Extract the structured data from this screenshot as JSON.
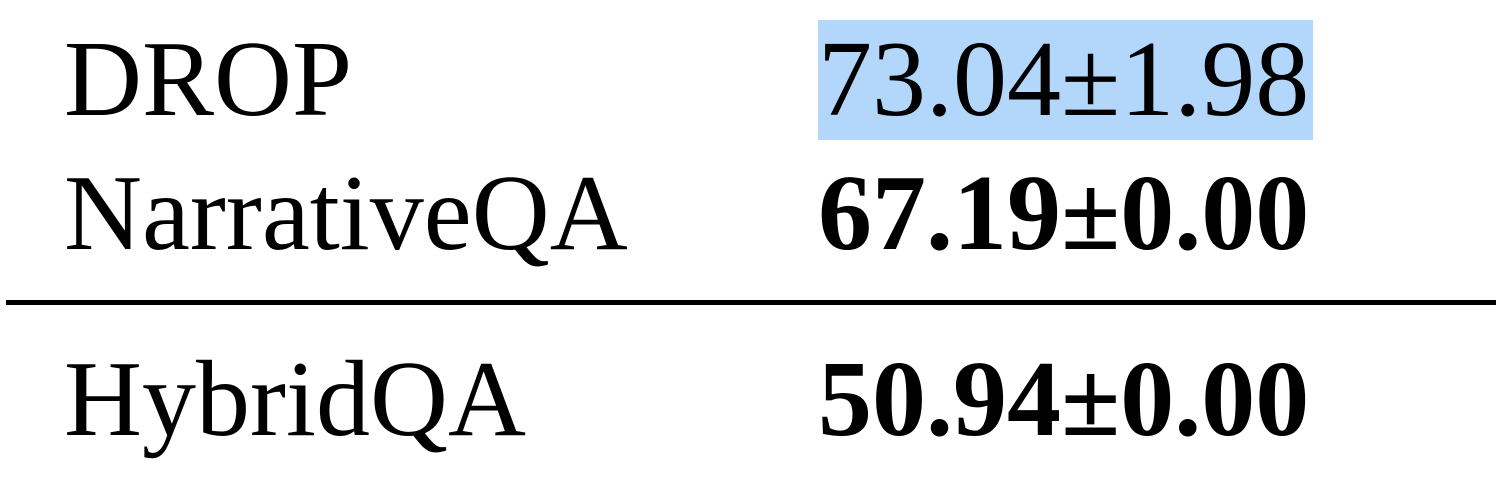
{
  "table": {
    "rows": [
      {
        "dataset": "DROP",
        "score": "73.04±1.98",
        "bold": false,
        "selected": true
      },
      {
        "dataset": "NarrativeQA",
        "score": "67.19±0.00",
        "bold": true,
        "selected": false
      },
      {
        "dataset": "HybridQA",
        "score": "50.94±0.00",
        "bold": true,
        "selected": false
      }
    ]
  },
  "colors": {
    "selection_highlight": "#b3d7fb",
    "text": "#000000",
    "rule": "#000000"
  }
}
